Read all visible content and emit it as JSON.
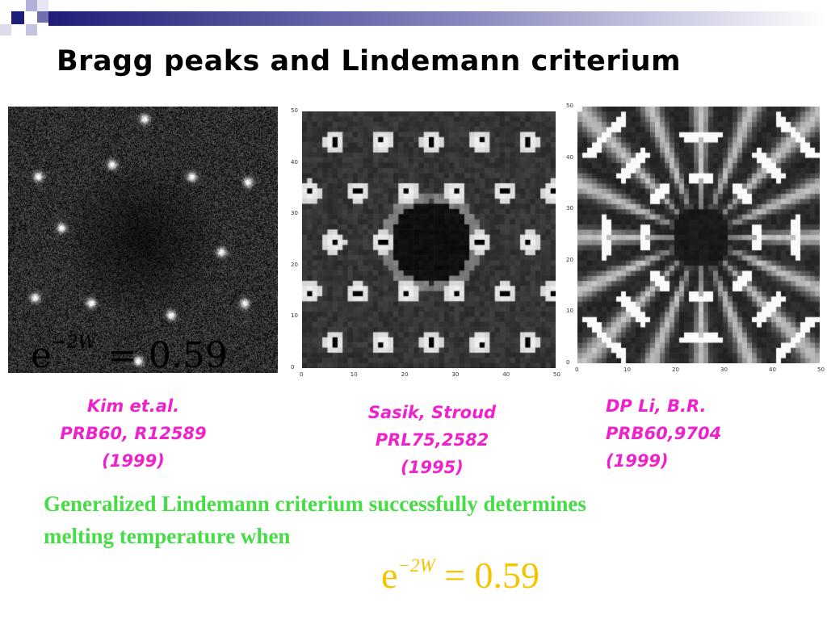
{
  "slide": {
    "title": "Bragg peaks and Lindemann criterium",
    "accent_colors": {
      "corner_dark": "#1e1e78",
      "corner_light": "#9999cc",
      "caption": "#ee22cc",
      "body": "#44dd44",
      "formula": "#f5c400"
    }
  },
  "panels": {
    "left": {
      "overlay_formula": {
        "base": "e",
        "exponent": "−2W",
        "rest": " = 0.59"
      }
    },
    "middle": {
      "axis_ticks": {
        "x": [
          "0",
          "10",
          "20",
          "30",
          "40",
          "50"
        ],
        "y": [
          "0",
          "10",
          "20",
          "30",
          "40",
          "50"
        ]
      }
    },
    "right": {
      "axis_ticks": {
        "x": [
          "0",
          "10",
          "20",
          "30",
          "40",
          "50"
        ],
        "y": [
          "0",
          "10",
          "20",
          "30",
          "40",
          "50"
        ]
      }
    }
  },
  "captions": {
    "left": {
      "line1": "Kim et.al.",
      "line2": "PRB60, R12589",
      "line3": "(1999)"
    },
    "middle": {
      "line1": "Sasik, Stroud",
      "line2": "PRL75,2582",
      "line3": "(1995)"
    },
    "right": {
      "line1": "DP Li, B.R.",
      "line2": "PRB60,9704",
      "line3": "(1999)"
    }
  },
  "body": {
    "line1": "Generalized Lindemann criterium successfully determines",
    "line2": "melting temperature when"
  },
  "bottom_formula": {
    "base": "e",
    "exponent": "−2W",
    "rest": " = 0.59"
  }
}
